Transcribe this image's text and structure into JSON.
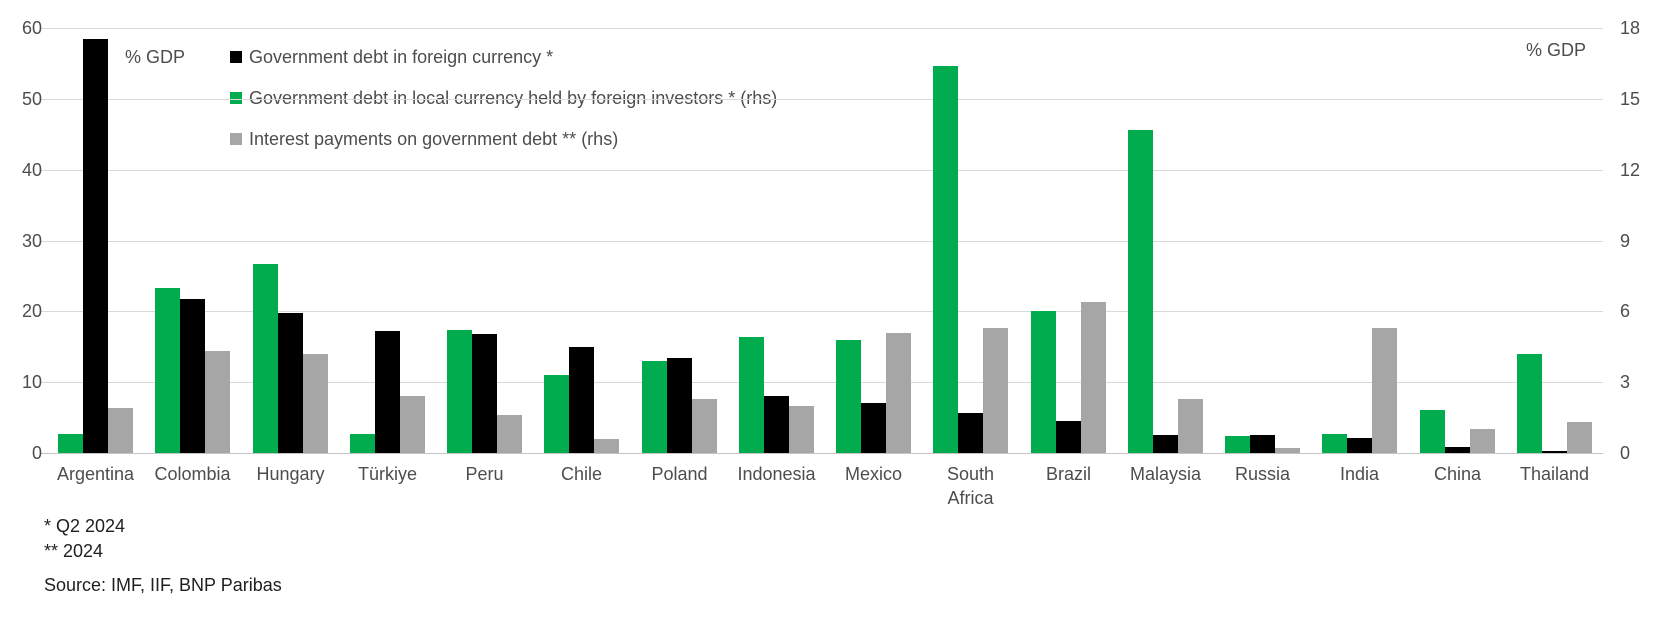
{
  "chart_data": {
    "type": "bar",
    "title": "",
    "grid": true,
    "legend_position": "top-left",
    "left_axis": {
      "title": "% GDP",
      "min": 0,
      "max": 60,
      "tick_step": 10,
      "ticks": [
        0,
        10,
        20,
        30,
        40,
        50,
        60
      ]
    },
    "right_axis": {
      "title": "% GDP",
      "min": 0,
      "max": 18,
      "tick_step": 3,
      "ticks": [
        0,
        3,
        6,
        9,
        12,
        15,
        18
      ]
    },
    "categories": [
      "Argentina",
      "Colombia",
      "Hungary",
      "Türkiye",
      "Peru",
      "Chile",
      "Poland",
      "Indonesia",
      "Mexico",
      "South Africa",
      "Brazil",
      "Malaysia",
      "Russia",
      "India",
      "China",
      "Thailand"
    ],
    "series": [
      {
        "name": "Government debt in foreign currency *",
        "axis": "lhs",
        "color": "#000000",
        "values": [
          58.5,
          21.7,
          19.8,
          17.2,
          16.8,
          15.0,
          13.4,
          8.1,
          7.0,
          5.7,
          4.5,
          2.6,
          2.6,
          2.1,
          0.8,
          0.3
        ]
      },
      {
        "name": "Government debt in local currency held by foreign investors * (rhs)",
        "axis": "rhs",
        "color": "#00AC4E",
        "values": [
          0.8,
          7.0,
          8.0,
          0.8,
          5.2,
          3.3,
          3.9,
          4.9,
          4.8,
          16.4,
          6.0,
          13.7,
          0.7,
          0.8,
          1.8,
          4.2
        ]
      },
      {
        "name": "Interest payments on government debt ** (rhs)",
        "axis": "rhs",
        "color": "#A6A6A6",
        "values": [
          1.9,
          4.3,
          4.2,
          2.4,
          1.6,
          0.6,
          2.3,
          2.0,
          5.1,
          5.3,
          6.4,
          2.3,
          0.2,
          5.3,
          1.0,
          1.3
        ]
      }
    ],
    "plot_order": [
      1,
      0,
      2
    ]
  },
  "footnotes": {
    "star1": "* Q2 2024",
    "star2": "** 2024",
    "source": "Source: IMF, IIF, BNP Paribas"
  },
  "colors": {
    "gridline": "#d9d9d9",
    "baseline": "#c4c4c4",
    "text": "#4d4d4d",
    "footnote_text": "#1f1f1f",
    "background": "#ffffff"
  }
}
